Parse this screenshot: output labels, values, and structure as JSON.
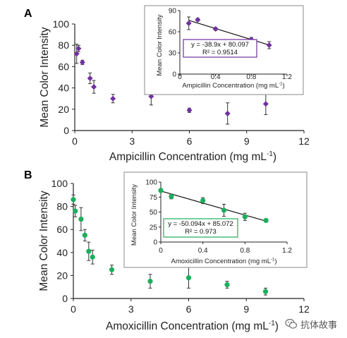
{
  "chart_data": [
    {
      "panel_label": "A",
      "type": "scatter",
      "xlabel": "Ampicillin Concentration (mg mL",
      "xlabel_sup": "-1",
      "xlabel_close": ")",
      "ylabel": "Mean Color Intensity",
      "xlim": [
        0,
        12
      ],
      "ylim": [
        0,
        100
      ],
      "xticks": [
        0,
        3,
        6,
        9,
        12
      ],
      "yticks": [
        0,
        20,
        40,
        60,
        80,
        100
      ],
      "color": "#7030a0",
      "marker": "diamond",
      "series": [
        {
          "x": [
            0.1,
            0.2,
            0.4,
            0.8,
            1.0,
            2,
            4,
            6,
            8,
            10
          ],
          "y": [
            72,
            77,
            64,
            49,
            41,
            30,
            32,
            19,
            16,
            25
          ],
          "err": [
            9,
            3,
            2,
            5,
            6,
            4,
            8,
            2,
            10,
            10
          ]
        }
      ],
      "inset": {
        "type": "scatter",
        "xlabel": "Ampicillin Concentration (mg mL",
        "xlabel_sup": "-1",
        "xlabel_close": ")",
        "ylabel": "Mean Color Intensity",
        "xlim": [
          0,
          1.2
        ],
        "ylim": [
          0,
          90
        ],
        "xticks": [
          "0",
          "0.4",
          "0.8",
          "1.2"
        ],
        "xtick_values": [
          0,
          0.4,
          0.8,
          1.2
        ],
        "yticks": [
          0,
          30,
          60,
          90
        ],
        "x": [
          0.1,
          0.2,
          0.4,
          0.8,
          1.0
        ],
        "y": [
          72,
          77,
          64,
          49,
          41
        ],
        "err": [
          9,
          2,
          2,
          3,
          5
        ],
        "fit": {
          "slope": -38.9,
          "intercept": 80.097
        },
        "equation": "y = -38.9x + 80.097",
        "r2": "R² = 0.9514",
        "box_color": "#7030a0"
      }
    },
    {
      "panel_label": "B",
      "type": "scatter",
      "xlabel": "Amoxicillin Concentration (mg mL",
      "xlabel_sup": "-1",
      "xlabel_close": ")",
      "ylabel": "Mean Color Intensity",
      "xlim": [
        0,
        12
      ],
      "ylim": [
        0,
        100
      ],
      "xticks": [
        0,
        3,
        6,
        9,
        12
      ],
      "yticks": [
        0,
        20,
        40,
        60,
        80,
        100
      ],
      "color": "#1aaf5d",
      "marker": "circle",
      "series": [
        {
          "x": [
            0,
            0.1,
            0.4,
            0.6,
            0.8,
            1.0,
            2,
            4,
            6,
            8,
            10
          ],
          "y": [
            86,
            76,
            69,
            55,
            41,
            36,
            25,
            15,
            18,
            12,
            6
          ],
          "err": [
            4,
            5,
            10,
            5,
            8,
            6,
            4,
            6,
            9,
            3,
            3
          ]
        }
      ],
      "inset": {
        "type": "scatter",
        "xlabel": "Amoxicillin Concentration (mg mL",
        "xlabel_sup": "-1",
        "xlabel_close": ")",
        "ylabel": "Mean Color Intensity",
        "xlim": [
          0,
          1.2
        ],
        "ylim": [
          0,
          100
        ],
        "xticks": [
          "0",
          "0.4",
          "0.8",
          "1.2"
        ],
        "xtick_values": [
          0,
          0.4,
          0.8,
          1.2
        ],
        "yticks": [
          0,
          25,
          50,
          75,
          100
        ],
        "x": [
          0,
          0.1,
          0.4,
          0.6,
          0.8,
          1.0
        ],
        "y": [
          86,
          76,
          69,
          53,
          42,
          36
        ],
        "err": [
          3,
          4,
          5,
          10,
          6,
          2
        ],
        "fit": {
          "slope": -50.094,
          "intercept": 85.072
        },
        "equation": "y = -50.094x + 85.072",
        "r2": "R² = 0.973",
        "box_color": "#1aaf5d"
      }
    }
  ],
  "watermark": {
    "text": "抗体故事",
    "icon": "wechat-icon"
  }
}
